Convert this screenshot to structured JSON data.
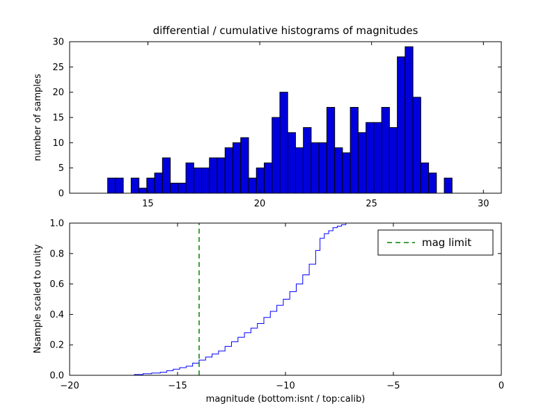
{
  "figure": {
    "title": "differential / cumulative histograms of magnitudes",
    "xlabel": "magnitude (bottom:isnt / top:calib)",
    "top_ylabel": "number of samples",
    "bottom_ylabel": "Nsample scaled to unity",
    "legend_label": "mag limit",
    "colors": {
      "background": "#ffffff",
      "bar_fill": "#0000dd",
      "bar_edge": "#000000",
      "step_line": "#0000ff",
      "mag_limit_line": "#008000",
      "axis": "#000000"
    }
  },
  "chart_data": [
    {
      "type": "bar",
      "title": "differential / cumulative histograms of magnitudes",
      "ylabel": "number of samples",
      "xlim": [
        11.5,
        30.8
      ],
      "ylim": [
        0,
        30
      ],
      "xticks": [
        15,
        20,
        25,
        30
      ],
      "xtick_labels": [
        "15",
        "20",
        "25",
        "30"
      ],
      "yticks": [
        0,
        5,
        10,
        15,
        20,
        25,
        30
      ],
      "ytick_labels": [
        "0",
        "5",
        "10",
        "15",
        "20",
        "25",
        "30"
      ],
      "grid": false,
      "bin_start": 13.2,
      "bin_width": 0.35,
      "counts": [
        3,
        3,
        0,
        3,
        1,
        3,
        4,
        7,
        2,
        2,
        6,
        5,
        5,
        7,
        7,
        9,
        10,
        11,
        3,
        5,
        6,
        15,
        20,
        12,
        9,
        13,
        10,
        10,
        17,
        9,
        8,
        17,
        12,
        14,
        14,
        17,
        13,
        27,
        29,
        19,
        6,
        4,
        0,
        3
      ]
    },
    {
      "type": "line",
      "ylabel": "Nsample scaled to unity",
      "xlabel": "magnitude (bottom:isnt / top:calib)",
      "xlim": [
        -20,
        0
      ],
      "ylim": [
        0,
        1.0
      ],
      "xticks": [
        -20,
        -15,
        -10,
        -5,
        0
      ],
      "xtick_labels": [
        "−20",
        "−15",
        "−10",
        "−5",
        "0"
      ],
      "yticks": [
        0.0,
        0.2,
        0.4,
        0.6,
        0.8,
        1.0
      ],
      "ytick_labels": [
        "0.0",
        "0.2",
        "0.4",
        "0.6",
        "0.8",
        "1.0"
      ],
      "grid": false,
      "line_style": "step",
      "step_points": [
        [
          -18.0,
          0.0
        ],
        [
          -17.0,
          0.005
        ],
        [
          -16.6,
          0.01
        ],
        [
          -16.2,
          0.015
        ],
        [
          -15.8,
          0.02
        ],
        [
          -15.5,
          0.03
        ],
        [
          -15.2,
          0.04
        ],
        [
          -14.9,
          0.05
        ],
        [
          -14.6,
          0.06
        ],
        [
          -14.3,
          0.08
        ],
        [
          -14.0,
          0.1
        ],
        [
          -13.7,
          0.12
        ],
        [
          -13.4,
          0.14
        ],
        [
          -13.1,
          0.16
        ],
        [
          -12.8,
          0.19
        ],
        [
          -12.5,
          0.22
        ],
        [
          -12.2,
          0.25
        ],
        [
          -11.9,
          0.28
        ],
        [
          -11.6,
          0.31
        ],
        [
          -11.3,
          0.34
        ],
        [
          -11.0,
          0.38
        ],
        [
          -10.7,
          0.42
        ],
        [
          -10.4,
          0.46
        ],
        [
          -10.1,
          0.5
        ],
        [
          -9.8,
          0.55
        ],
        [
          -9.5,
          0.6
        ],
        [
          -9.2,
          0.66
        ],
        [
          -8.9,
          0.73
        ],
        [
          -8.6,
          0.82
        ],
        [
          -8.4,
          0.9
        ],
        [
          -8.2,
          0.93
        ],
        [
          -8.0,
          0.95
        ],
        [
          -7.8,
          0.97
        ],
        [
          -7.6,
          0.98
        ],
        [
          -7.4,
          0.99
        ],
        [
          -7.2,
          1.0
        ],
        [
          0.0,
          1.0
        ]
      ],
      "mag_limit_x": -14,
      "legend": {
        "label": "mag limit",
        "position": "upper right"
      }
    }
  ]
}
